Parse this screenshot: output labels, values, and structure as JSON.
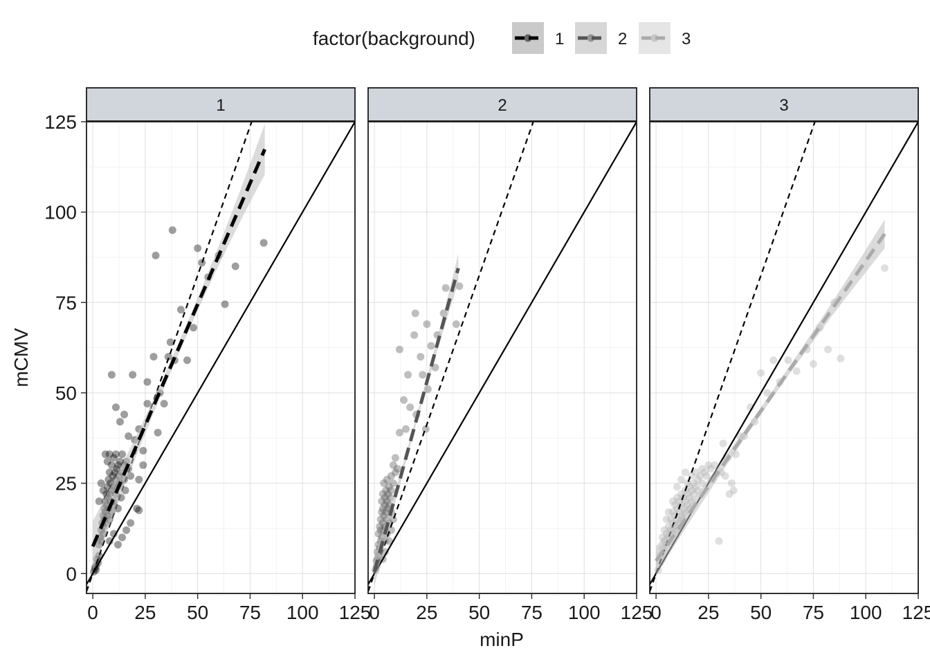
{
  "chart_data": {
    "type": "scatter",
    "xlabel": "minP",
    "ylabel": "mCMV",
    "xlim": [
      -3,
      125
    ],
    "ylim": [
      -5.5,
      125
    ],
    "x_ticks": [
      0,
      25,
      50,
      75,
      100,
      125
    ],
    "y_ticks": [
      0,
      25,
      50,
      75,
      100,
      125
    ],
    "x_tick_labels": [
      "0",
      "25",
      "50",
      "75",
      "100",
      "125"
    ],
    "y_tick_labels": [
      "0",
      "25",
      "50",
      "75",
      "100",
      "125"
    ],
    "grid": true,
    "legend": {
      "title": "factor(background)",
      "position": "top",
      "entries": [
        "1",
        "2",
        "3"
      ]
    },
    "reference_lines": [
      {
        "style": "solid",
        "slope": 1,
        "intercept": 0
      },
      {
        "style": "dashed",
        "slope": 1.65,
        "intercept": 0
      }
    ],
    "series": [
      {
        "name": "1",
        "panel": "1",
        "color": "#000000",
        "fit": {
          "x_range": [
            0,
            82
          ],
          "slope": 1.34,
          "intercept": 7.5,
          "band": [
            1.5,
            7
          ]
        },
        "points": [
          [
            0.5,
            0.5
          ],
          [
            1,
            1.5
          ],
          [
            1.5,
            2
          ],
          [
            1.5,
            1
          ],
          [
            2,
            4
          ],
          [
            2.5,
            3
          ],
          [
            3,
            5
          ],
          [
            3,
            8
          ],
          [
            3.5,
            10
          ],
          [
            4,
            12
          ],
          [
            4,
            9
          ],
          [
            4.5,
            14
          ],
          [
            5,
            16
          ],
          [
            5,
            11
          ],
          [
            5,
            13
          ],
          [
            5.5,
            18
          ],
          [
            5.5,
            15
          ],
          [
            6,
            20
          ],
          [
            6,
            17
          ],
          [
            6,
            14
          ],
          [
            6.5,
            19
          ],
          [
            6.5,
            22
          ],
          [
            7,
            21
          ],
          [
            7,
            16
          ],
          [
            7,
            24
          ],
          [
            7.5,
            18
          ],
          [
            7.5,
            26
          ],
          [
            8,
            22
          ],
          [
            8,
            15
          ],
          [
            8,
            28
          ],
          [
            8.5,
            20
          ],
          [
            8.5,
            25
          ],
          [
            9,
            30
          ],
          [
            9,
            17
          ],
          [
            9,
            23
          ],
          [
            9.5,
            27
          ],
          [
            9.5,
            19
          ],
          [
            10,
            24
          ],
          [
            10,
            32
          ],
          [
            10,
            20
          ],
          [
            10.5,
            28
          ],
          [
            11,
            22
          ],
          [
            11,
            26
          ],
          [
            11,
            33
          ],
          [
            11.5,
            29
          ],
          [
            12,
            24
          ],
          [
            12,
            30
          ],
          [
            12,
            18
          ],
          [
            12.5,
            27
          ],
          [
            13,
            31
          ],
          [
            13,
            25
          ],
          [
            13.5,
            21
          ],
          [
            14,
            28
          ],
          [
            14,
            33
          ],
          [
            15,
            30
          ],
          [
            15,
            26
          ],
          [
            15.5,
            23
          ],
          [
            16,
            31
          ],
          [
            17,
            29
          ],
          [
            18,
            27
          ],
          [
            6,
            33
          ],
          [
            7,
            31
          ],
          [
            8,
            33
          ],
          [
            4,
            25
          ],
          [
            3,
            20
          ],
          [
            5,
            23
          ],
          [
            9,
            55
          ],
          [
            11,
            46
          ],
          [
            13,
            42
          ],
          [
            15,
            44
          ],
          [
            17,
            38
          ],
          [
            19,
            55
          ],
          [
            20,
            37
          ],
          [
            22,
            40
          ],
          [
            24,
            34
          ],
          [
            22,
            26
          ],
          [
            21,
            18
          ],
          [
            22,
            17.5
          ],
          [
            24,
            30
          ],
          [
            26,
            53
          ],
          [
            26,
            47
          ],
          [
            29,
            60
          ],
          [
            30,
            88
          ],
          [
            31,
            39
          ],
          [
            32,
            50
          ],
          [
            34,
            47
          ],
          [
            36,
            60
          ],
          [
            37,
            64
          ],
          [
            38,
            95
          ],
          [
            39,
            59
          ],
          [
            42,
            73
          ],
          [
            45,
            59
          ],
          [
            48,
            68
          ],
          [
            50,
            90
          ],
          [
            52,
            86
          ],
          [
            55,
            82
          ],
          [
            60,
            88
          ],
          [
            63,
            74.5
          ],
          [
            68,
            85
          ],
          [
            81.5,
            91.5
          ],
          [
            14,
            10
          ],
          [
            16,
            12
          ],
          [
            18,
            14
          ],
          [
            12,
            8
          ],
          [
            10,
            11
          ],
          [
            8,
            9
          ]
        ]
      },
      {
        "name": "2",
        "panel": "2",
        "color": "#555555",
        "fit": {
          "x_range": [
            0,
            40
          ],
          "slope": 2.1,
          "intercept": 0.5,
          "band": [
            1,
            4
          ]
        },
        "points": [
          [
            0.5,
            1
          ],
          [
            1,
            2
          ],
          [
            1,
            3.5
          ],
          [
            1.5,
            4
          ],
          [
            1.5,
            6
          ],
          [
            2,
            5
          ],
          [
            2,
            8
          ],
          [
            2,
            11
          ],
          [
            2.5,
            7
          ],
          [
            2.5,
            13
          ],
          [
            3,
            9
          ],
          [
            3,
            15
          ],
          [
            3,
            12
          ],
          [
            3.5,
            10
          ],
          [
            3.5,
            17
          ],
          [
            3.5,
            20
          ],
          [
            4,
            14
          ],
          [
            4,
            18
          ],
          [
            4,
            22
          ],
          [
            4.5,
            16
          ],
          [
            4.5,
            12
          ],
          [
            4.5,
            25
          ],
          [
            5,
            19
          ],
          [
            5,
            13
          ],
          [
            5,
            21
          ],
          [
            5,
            9
          ],
          [
            5.5,
            17
          ],
          [
            5.5,
            23
          ],
          [
            6,
            15
          ],
          [
            6,
            20
          ],
          [
            6,
            26
          ],
          [
            6.5,
            18
          ],
          [
            6.5,
            22
          ],
          [
            7,
            14
          ],
          [
            7,
            24
          ],
          [
            7,
            19
          ],
          [
            7.5,
            21
          ],
          [
            8,
            17
          ],
          [
            8,
            27
          ],
          [
            8,
            23
          ],
          [
            9,
            25
          ],
          [
            9,
            30
          ],
          [
            10,
            28
          ],
          [
            10,
            32
          ],
          [
            11,
            29
          ],
          [
            12,
            62
          ],
          [
            12,
            39
          ],
          [
            14,
            48
          ],
          [
            15,
            40
          ],
          [
            16,
            55
          ],
          [
            17,
            46
          ],
          [
            19,
            66
          ],
          [
            19.5,
            72
          ],
          [
            20,
            44
          ],
          [
            22,
            60
          ],
          [
            23,
            55
          ],
          [
            24.5,
            40
          ],
          [
            25,
            69
          ],
          [
            25.5,
            51
          ],
          [
            27,
            63
          ],
          [
            29,
            57
          ],
          [
            30,
            66
          ],
          [
            33,
            72
          ],
          [
            34,
            79
          ],
          [
            39,
            69
          ],
          [
            40.5,
            79.5
          ],
          [
            6,
            11
          ],
          [
            7,
            9
          ],
          [
            5,
            6
          ],
          [
            4,
            4
          ],
          [
            8,
            12
          ],
          [
            9,
            15
          ]
        ]
      },
      {
        "name": "3",
        "panel": "3",
        "color": "#aaaaaa",
        "fit": {
          "x_range": [
            0,
            109
          ],
          "slope": 0.83,
          "intercept": 3.5,
          "band": [
            1,
            4
          ]
        },
        "points": [
          [
            1,
            1
          ],
          [
            2,
            3
          ],
          [
            2,
            5
          ],
          [
            3,
            4
          ],
          [
            3,
            7
          ],
          [
            4,
            6
          ],
          [
            4,
            9
          ],
          [
            5,
            8
          ],
          [
            5,
            11
          ],
          [
            6,
            10
          ],
          [
            6,
            13
          ],
          [
            7,
            9
          ],
          [
            7,
            12
          ],
          [
            7,
            15
          ],
          [
            8,
            11
          ],
          [
            8,
            14
          ],
          [
            8,
            17
          ],
          [
            9,
            13
          ],
          [
            9,
            16
          ],
          [
            9,
            19
          ],
          [
            10,
            12
          ],
          [
            10,
            15
          ],
          [
            10,
            18
          ],
          [
            10,
            21
          ],
          [
            11,
            14
          ],
          [
            11,
            17
          ],
          [
            11,
            20
          ],
          [
            12,
            16
          ],
          [
            12,
            19
          ],
          [
            12,
            22
          ],
          [
            13,
            15
          ],
          [
            13,
            18
          ],
          [
            13,
            21
          ],
          [
            14,
            17
          ],
          [
            14,
            20
          ],
          [
            14,
            23
          ],
          [
            15,
            19
          ],
          [
            15,
            22
          ],
          [
            15,
            25
          ],
          [
            16,
            18
          ],
          [
            16,
            21
          ],
          [
            16,
            24
          ],
          [
            17,
            20
          ],
          [
            17,
            23
          ],
          [
            17,
            27
          ],
          [
            18,
            22
          ],
          [
            18,
            25
          ],
          [
            19,
            24
          ],
          [
            19,
            28
          ],
          [
            20,
            23
          ],
          [
            20,
            26
          ],
          [
            21,
            27
          ],
          [
            22,
            25
          ],
          [
            22,
            29
          ],
          [
            23,
            28
          ],
          [
            24,
            27
          ],
          [
            25,
            30
          ],
          [
            26,
            29
          ],
          [
            27,
            26
          ],
          [
            28,
            30
          ],
          [
            30,
            9
          ],
          [
            31,
            28
          ],
          [
            32,
            36
          ],
          [
            33,
            27
          ],
          [
            34,
            32
          ],
          [
            35,
            22
          ],
          [
            36,
            25
          ],
          [
            37,
            23
          ],
          [
            38,
            33
          ],
          [
            40,
            38
          ],
          [
            42,
            38
          ],
          [
            45,
            46
          ],
          [
            47,
            42
          ],
          [
            50,
            55.5
          ],
          [
            53,
            50
          ],
          [
            56,
            59
          ],
          [
            59,
            53
          ],
          [
            63,
            59
          ],
          [
            67,
            56
          ],
          [
            72,
            62
          ],
          [
            75,
            58
          ],
          [
            78,
            68
          ],
          [
            82,
            62
          ],
          [
            85,
            75
          ],
          [
            88,
            59.5
          ],
          [
            109,
            84.5
          ],
          [
            6,
            17
          ],
          [
            8,
            20
          ],
          [
            10,
            24
          ],
          [
            5,
            15
          ],
          [
            12,
            26
          ],
          [
            14,
            28
          ],
          [
            4,
            12
          ],
          [
            3,
            10
          ]
        ]
      }
    ]
  },
  "panels": [
    {
      "label": "1"
    },
    {
      "label": "2"
    },
    {
      "label": "3"
    }
  ]
}
